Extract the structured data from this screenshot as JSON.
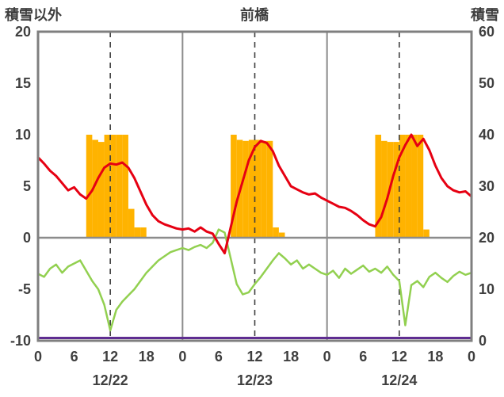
{
  "chart_data": {
    "type": "composite-bar-line",
    "title": "前橋",
    "left_axis": {
      "label": "積雪以外",
      "min": -10,
      "max": 20,
      "ticks": [
        20,
        15,
        10,
        5,
        0,
        -5,
        -10
      ]
    },
    "right_axis": {
      "label": "積雪",
      "min": 0,
      "max": 60,
      "ticks": [
        60,
        50,
        40,
        30,
        20,
        10,
        0
      ]
    },
    "x_axis": {
      "unit": "hour",
      "min": 0,
      "max": 72,
      "tick_interval": 6,
      "tick_labels": [
        "0",
        "6",
        "12",
        "18",
        "0",
        "6",
        "12",
        "18",
        "0",
        "6",
        "12",
        "18",
        "0"
      ],
      "day_labels": [
        {
          "label": "12/22",
          "center_hour": 12
        },
        {
          "label": "12/23",
          "center_hour": 36
        },
        {
          "label": "12/24",
          "center_hour": 60
        }
      ],
      "dashed_gridline_hours": [
        12,
        36,
        60
      ],
      "solid_gridline_hours": [
        24,
        48
      ]
    },
    "grid": {
      "zero_line_value": 0,
      "border_color": "#7f7f7f",
      "dashed_color": "#404040",
      "solid_color": "#8c8c8c"
    },
    "series": [
      {
        "name": "sunshine-bars",
        "type": "bar",
        "axis": "left",
        "color": "#ffb300",
        "values": [
          0,
          0,
          0,
          0,
          0,
          0,
          0,
          0,
          10,
          9.5,
          9.3,
          10,
          10,
          10,
          10,
          2.8,
          1,
          1,
          0,
          0,
          0,
          0,
          0,
          0,
          0,
          0,
          0,
          0,
          0,
          0,
          0,
          0,
          10,
          9.5,
          9.4,
          9.5,
          9.5,
          9.4,
          9.4,
          1,
          0.5,
          0,
          0,
          0,
          0,
          0,
          0,
          0,
          0,
          0,
          0,
          0,
          0,
          0,
          0,
          0,
          10,
          9.4,
          9.3,
          9.3,
          10,
          10,
          10,
          10,
          0.8,
          0,
          0,
          0,
          0,
          0,
          0,
          0
        ]
      },
      {
        "name": "green-line",
        "type": "line",
        "axis": "left",
        "color": "#92d050",
        "width": 2.5,
        "values": [
          -3.5,
          -3.8,
          -3.0,
          -2.6,
          -3.4,
          -2.8,
          -2.5,
          -2.2,
          -3.2,
          -4.2,
          -5.0,
          -6.5,
          -9.0,
          -7.0,
          -6.2,
          -5.6,
          -5.0,
          -4.2,
          -3.4,
          -2.8,
          -2.2,
          -1.8,
          -1.4,
          -1.2,
          -1.0,
          -1.2,
          -0.9,
          -0.7,
          -1.0,
          -0.5,
          0.8,
          0.5,
          -2.0,
          -4.5,
          -5.5,
          -5.3,
          -4.5,
          -3.8,
          -3.0,
          -2.2,
          -1.5,
          -2.0,
          -2.6,
          -2.2,
          -3.0,
          -2.6,
          -3.0,
          -3.4,
          -3.6,
          -3.2,
          -3.9,
          -3.0,
          -3.5,
          -3.1,
          -2.7,
          -3.3,
          -3.0,
          -3.4,
          -2.8,
          -3.6,
          -4.2,
          -8.5,
          -4.6,
          -4.2,
          -4.8,
          -3.8,
          -3.4,
          -3.9,
          -4.3,
          -3.7,
          -3.3,
          -3.6,
          -3.4
        ]
      },
      {
        "name": "temperature-line",
        "type": "line",
        "axis": "left",
        "color": "#e60012",
        "width": 3,
        "values": [
          7.8,
          7.2,
          6.5,
          6.0,
          5.3,
          4.6,
          4.9,
          4.2,
          3.8,
          4.6,
          5.8,
          6.8,
          7.2,
          7.1,
          7.3,
          6.8,
          5.8,
          4.5,
          3.2,
          2.2,
          1.6,
          1.3,
          1.1,
          0.9,
          0.8,
          0.9,
          0.6,
          1.0,
          0.6,
          0.4,
          -0.6,
          -1.5,
          1.0,
          3.5,
          5.5,
          7.5,
          8.8,
          9.4,
          9.2,
          8.4,
          7.0,
          6.0,
          5.0,
          4.7,
          4.4,
          4.2,
          4.3,
          3.9,
          3.6,
          3.3,
          3.0,
          2.9,
          2.6,
          2.2,
          1.7,
          1.3,
          1.1,
          2.0,
          3.8,
          6.0,
          7.8,
          9.0,
          10.0,
          8.9,
          9.6,
          8.5,
          7.0,
          5.8,
          5.0,
          4.6,
          4.4,
          4.5,
          4.0
        ]
      },
      {
        "name": "snow-depth-line",
        "type": "line",
        "axis": "right",
        "color": "#5f2d91",
        "width": 3,
        "constant": 0
      }
    ]
  }
}
